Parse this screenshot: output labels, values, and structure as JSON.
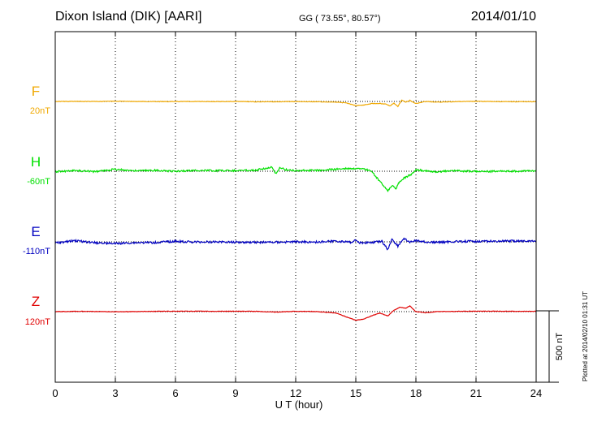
{
  "header": {
    "title": "Dixon Island (DIK)  [AARI]",
    "coords": "GG ( 73.55°,  80.57°)",
    "date": "2014/01/10"
  },
  "plotted_note": "Plotted at 2014/02/10 01:31  UT",
  "chart_data": {
    "type": "line",
    "xlabel": "U T (hour)",
    "xlim": [
      0,
      24
    ],
    "xticks": [
      0,
      3,
      6,
      9,
      12,
      15,
      18,
      21,
      24
    ],
    "grid": "dotted vertical lines every 3 hours",
    "scale_bar": "500 nT",
    "series": [
      {
        "name": "F",
        "baseline": "20nT",
        "color": "#f0a800",
        "points": [
          [
            0,
            0
          ],
          [
            1,
            1
          ],
          [
            2,
            0
          ],
          [
            3,
            2
          ],
          [
            4,
            0
          ],
          [
            5,
            -1
          ],
          [
            6,
            -1
          ],
          [
            7,
            0
          ],
          [
            8,
            -1
          ],
          [
            9,
            0
          ],
          [
            10,
            -2
          ],
          [
            11,
            -2
          ],
          [
            12,
            -1
          ],
          [
            13,
            -2
          ],
          [
            14,
            -5
          ],
          [
            14.5,
            -10
          ],
          [
            14.8,
            -22
          ],
          [
            15,
            -28
          ],
          [
            15.4,
            -25
          ],
          [
            15.8,
            -14
          ],
          [
            16.2,
            -14
          ],
          [
            16.5,
            -18
          ],
          [
            16.7,
            -32
          ],
          [
            16.9,
            -12
          ],
          [
            17.1,
            -35
          ],
          [
            17.3,
            10
          ],
          [
            17.5,
            -5
          ],
          [
            17.7,
            8
          ],
          [
            18,
            -15
          ],
          [
            18.5,
            0
          ],
          [
            19,
            -5
          ],
          [
            20,
            -1
          ],
          [
            21,
            1
          ],
          [
            22,
            -1
          ],
          [
            23,
            -2
          ],
          [
            24,
            -1
          ]
        ]
      },
      {
        "name": "H",
        "baseline": "-60nT",
        "color": "#00e000",
        "points": [
          [
            0,
            -2
          ],
          [
            1,
            4
          ],
          [
            2,
            -3
          ],
          [
            3,
            14
          ],
          [
            4,
            3
          ],
          [
            5,
            6
          ],
          [
            6,
            0
          ],
          [
            7,
            6
          ],
          [
            8,
            4
          ],
          [
            9,
            5
          ],
          [
            10,
            8
          ],
          [
            10.8,
            28
          ],
          [
            11,
            -18
          ],
          [
            11.2,
            24
          ],
          [
            11.6,
            8
          ],
          [
            12,
            5
          ],
          [
            13,
            6
          ],
          [
            14,
            14
          ],
          [
            14.5,
            20
          ],
          [
            15,
            18
          ],
          [
            15.5,
            14
          ],
          [
            15.8,
            0
          ],
          [
            16,
            -40
          ],
          [
            16.3,
            -85
          ],
          [
            16.6,
            -135
          ],
          [
            16.8,
            -100
          ],
          [
            17,
            -120
          ],
          [
            17.2,
            -70
          ],
          [
            17.5,
            -40
          ],
          [
            17.8,
            -20
          ],
          [
            18,
            10
          ],
          [
            18.5,
            2
          ],
          [
            19,
            -3
          ],
          [
            20,
            4
          ],
          [
            21,
            -2
          ],
          [
            22,
            0
          ],
          [
            23,
            0
          ],
          [
            24,
            2
          ]
        ]
      },
      {
        "name": "E",
        "baseline": "-110nT",
        "color": "#0000c0",
        "points": [
          [
            0,
            -8
          ],
          [
            1,
            8
          ],
          [
            2,
            -6
          ],
          [
            3,
            -12
          ],
          [
            4,
            -6
          ],
          [
            5,
            -5
          ],
          [
            6,
            4
          ],
          [
            7,
            -2
          ],
          [
            8,
            0
          ],
          [
            9,
            -2
          ],
          [
            10,
            -3
          ],
          [
            11,
            -3
          ],
          [
            12,
            0
          ],
          [
            13,
            -1
          ],
          [
            14,
            5
          ],
          [
            14.8,
            -4
          ],
          [
            15,
            14
          ],
          [
            15.2,
            -8
          ],
          [
            15.8,
            -4
          ],
          [
            16.3,
            4
          ],
          [
            16.6,
            -55
          ],
          [
            16.8,
            20
          ],
          [
            17.1,
            -30
          ],
          [
            17.4,
            25
          ],
          [
            17.7,
            -5
          ],
          [
            18,
            10
          ],
          [
            18.5,
            -2
          ],
          [
            19,
            -4
          ],
          [
            20,
            2
          ],
          [
            21,
            4
          ],
          [
            22,
            4
          ],
          [
            23,
            6
          ],
          [
            24,
            8
          ]
        ]
      },
      {
        "name": "Z",
        "baseline": "120nT",
        "color": "#e00000",
        "points": [
          [
            0,
            0
          ],
          [
            1,
            2
          ],
          [
            2,
            1
          ],
          [
            3,
            -1
          ],
          [
            4,
            0
          ],
          [
            5,
            2
          ],
          [
            6,
            3
          ],
          [
            7,
            3
          ],
          [
            8,
            2
          ],
          [
            9,
            3
          ],
          [
            10,
            2
          ],
          [
            11,
            -3
          ],
          [
            12,
            2
          ],
          [
            13,
            1
          ],
          [
            14,
            -10
          ],
          [
            14.6,
            -40
          ],
          [
            15,
            -60
          ],
          [
            15.4,
            -52
          ],
          [
            15.8,
            -28
          ],
          [
            16.2,
            -10
          ],
          [
            16.6,
            -30
          ],
          [
            16.9,
            10
          ],
          [
            17.2,
            30
          ],
          [
            17.5,
            25
          ],
          [
            17.7,
            40
          ],
          [
            18,
            0
          ],
          [
            18.5,
            -8
          ],
          [
            19,
            0
          ],
          [
            20,
            2
          ],
          [
            21,
            3
          ],
          [
            22,
            3
          ],
          [
            23,
            2
          ],
          [
            24,
            2
          ]
        ]
      }
    ]
  }
}
